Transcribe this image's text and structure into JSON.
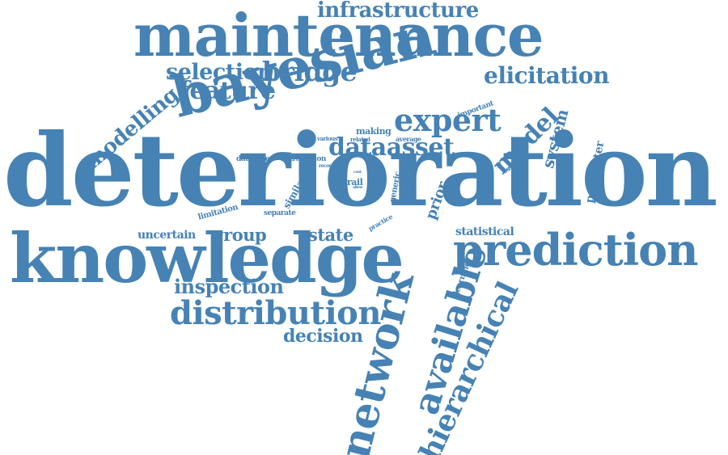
{
  "cloud": {
    "color": "#4682b4",
    "words": [
      "deterioration",
      "knowledge",
      "maintenance",
      "bayesian",
      "network",
      "prediction",
      "available",
      "hierarchical",
      "distribution",
      "expert",
      "dataasset",
      "model",
      "infrastructure",
      "selection",
      "bridge",
      "feature",
      "elicitation",
      "modelling",
      "inspection",
      "decision",
      "state",
      "group",
      "uncertain",
      "system",
      "prior",
      "parameter",
      "statistical",
      "learning",
      "limitation",
      "similar",
      "separate",
      "database",
      "transition",
      "record",
      "rail",
      "generic",
      "practice",
      "making",
      "various",
      "related",
      "average",
      "cost",
      "allow",
      "important",
      "estimate"
    ]
  }
}
